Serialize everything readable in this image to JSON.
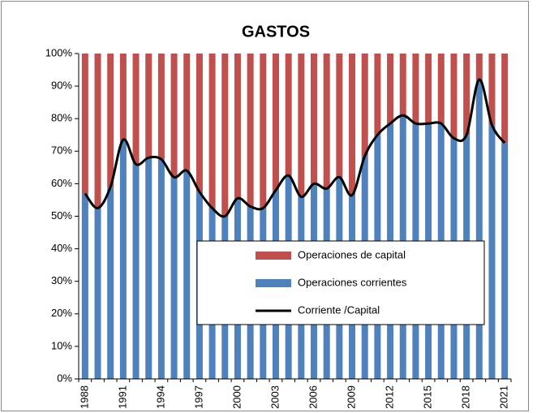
{
  "chart_data": {
    "type": "bar",
    "title": "GASTOS",
    "stacked": true,
    "categories": [
      "1988",
      null,
      null,
      "1991",
      null,
      null,
      "1994",
      null,
      null,
      "1997",
      null,
      null,
      "2000",
      null,
      null,
      "2003",
      null,
      null,
      "2006",
      null,
      null,
      "2009",
      null,
      null,
      "2012",
      null,
      null,
      "2015",
      null,
      null,
      "2018",
      null,
      null,
      "2021"
    ],
    "series": [
      {
        "name": "Operaciones corrientes",
        "color": "#4f81bd",
        "kind": "bar",
        "values": [
          57,
          52.5,
          59,
          73.5,
          66,
          68,
          67.5,
          62,
          64,
          57.5,
          52.5,
          50,
          55.5,
          53,
          52.5,
          58,
          62.5,
          56,
          60,
          58.5,
          62,
          56.5,
          68.5,
          75,
          78.5,
          81,
          78.5,
          78.5,
          78.5,
          74,
          75,
          92,
          78,
          72.5
        ]
      },
      {
        "name": "Operaciones de capital",
        "color": "#c0504d",
        "kind": "bar",
        "values": [
          43,
          47.5,
          41,
          26.5,
          34,
          32,
          32.5,
          38,
          36,
          42.5,
          47.5,
          50,
          44.5,
          47,
          47.5,
          42,
          37.5,
          44,
          40,
          41.5,
          38,
          43.5,
          31.5,
          25,
          21.5,
          19,
          21.5,
          21.5,
          21.5,
          26,
          25,
          8,
          22,
          27.5
        ]
      },
      {
        "name": "Corriente /Capital",
        "color": "#000000",
        "kind": "line",
        "values": [
          57,
          52.5,
          59,
          73.5,
          66,
          68,
          67.5,
          62,
          64,
          57.5,
          52.5,
          50,
          55.5,
          53,
          52.5,
          58,
          62.5,
          56,
          60,
          58.5,
          62,
          56.5,
          68.5,
          75,
          78.5,
          81,
          78.5,
          78.5,
          78.5,
          74,
          75,
          92,
          78,
          72.5
        ]
      }
    ],
    "ylim": [
      0,
      100
    ],
    "yticks": [
      {
        "value": 0,
        "label": "0%"
      },
      {
        "value": 10,
        "label": "10%"
      },
      {
        "value": 20,
        "label": "20%"
      },
      {
        "value": 30,
        "label": "30%"
      },
      {
        "value": 40,
        "label": "40%"
      },
      {
        "value": 50,
        "label": "50%"
      },
      {
        "value": 60,
        "label": "60%"
      },
      {
        "value": 70,
        "label": "70%"
      },
      {
        "value": 80,
        "label": "80%"
      },
      {
        "value": 90,
        "label": "90%"
      },
      {
        "value": 100,
        "label": "100%"
      }
    ],
    "legend": "lower right",
    "grid": false
  }
}
